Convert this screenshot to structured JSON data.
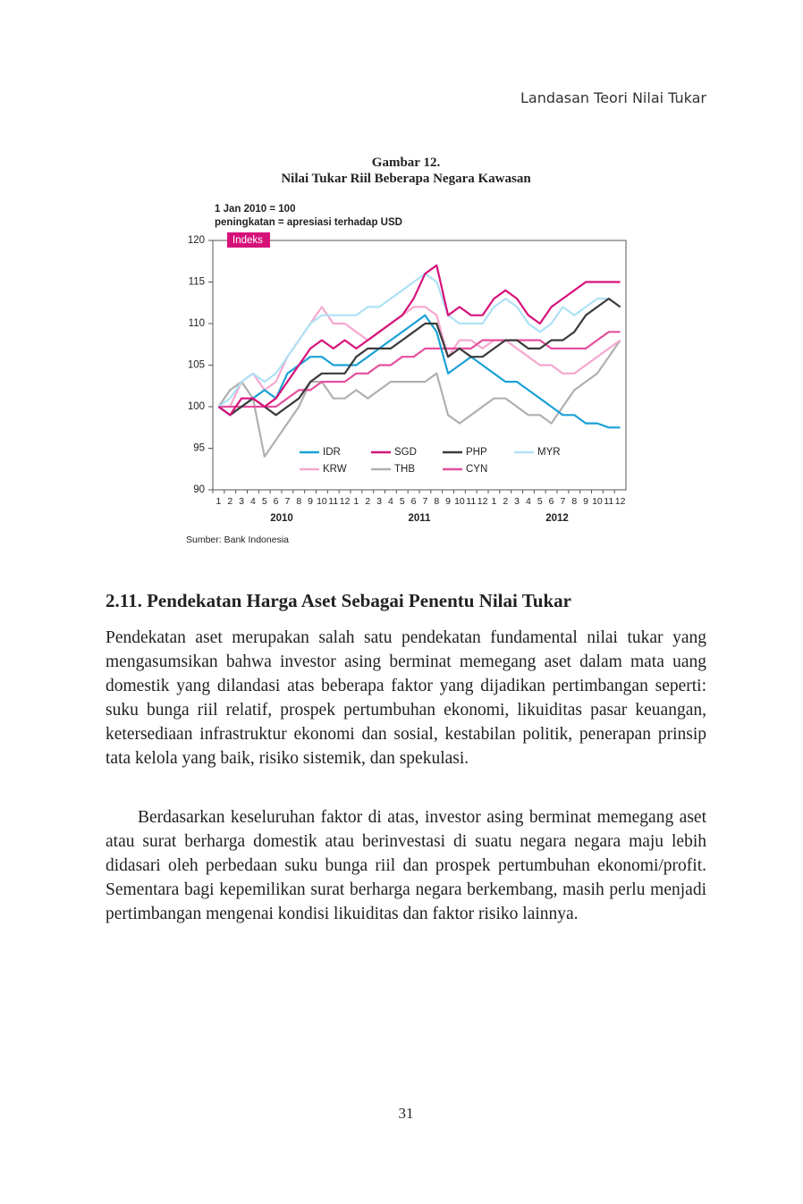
{
  "header": {
    "running_title": "Landasan Teori Nilai Tukar"
  },
  "figure": {
    "number": "Gambar 12.",
    "title": "Nilai Tukar Riil Beberapa Negara Kawasan",
    "source": "Sumber: Bank Indonesia"
  },
  "chart_data": {
    "type": "line",
    "notes": [
      "1 Jan 2010 = 100",
      "peningkatan = apresiasi terhadap USD"
    ],
    "y_label": "Indeks",
    "categories": [
      "1",
      "2",
      "3",
      "4",
      "5",
      "6",
      "7",
      "8",
      "9",
      "10",
      "11",
      "12",
      "1",
      "2",
      "3",
      "4",
      "5",
      "6",
      "7",
      "8",
      "9",
      "10",
      "11",
      "12",
      "1",
      "2",
      "3",
      "4",
      "5",
      "6",
      "7",
      "8",
      "9",
      "10",
      "11",
      "12"
    ],
    "x_groups": [
      "2010",
      "2011",
      "2012"
    ],
    "ylim": [
      90,
      120
    ],
    "yticks": [
      90,
      95,
      100,
      105,
      110,
      115,
      120
    ],
    "series": [
      {
        "name": "IDR",
        "color": "#1ba1d6",
        "values": [
          100,
          99,
          100,
          101,
          102,
          101,
          104,
          105,
          106,
          106,
          105,
          105,
          105,
          106,
          107,
          108,
          109,
          110,
          111,
          109,
          104,
          105,
          106,
          105,
          104,
          103,
          103,
          102,
          101,
          100,
          99,
          99,
          98,
          98,
          97.5,
          97.5
        ]
      },
      {
        "name": "SGD",
        "color": "#d6127a",
        "values": [
          100,
          99,
          101,
          101,
          100,
          101,
          103,
          105,
          107,
          108,
          107,
          108,
          107,
          108,
          109,
          110,
          111,
          113,
          116,
          117,
          111,
          112,
          111,
          111,
          113,
          114,
          113,
          111,
          110,
          112,
          113,
          114,
          115,
          115,
          115,
          115
        ]
      },
      {
        "name": "PHP",
        "color": "#3a3a3a",
        "values": [
          100,
          99,
          100,
          101,
          100,
          99,
          100,
          101,
          103,
          104,
          104,
          104,
          106,
          107,
          107,
          107,
          108,
          109,
          110,
          110,
          106,
          107,
          106,
          106,
          107,
          108,
          108,
          107,
          107,
          108,
          108,
          109,
          111,
          112,
          113,
          112
        ]
      },
      {
        "name": "MYR",
        "color": "#aee2f5",
        "values": [
          100,
          101,
          103,
          104,
          103,
          104,
          106,
          108,
          110,
          111,
          111,
          111,
          111,
          112,
          112,
          113,
          114,
          115,
          116,
          115,
          111,
          110,
          110,
          110,
          112,
          113,
          112,
          110,
          109,
          110,
          112,
          111,
          112,
          113,
          113,
          112
        ]
      },
      {
        "name": "KRW",
        "color": "#f5a8d0",
        "values": [
          100,
          100,
          103,
          104,
          102,
          103,
          106,
          108,
          110,
          112,
          110,
          110,
          109,
          108,
          109,
          110,
          111,
          112,
          112,
          111,
          106,
          108,
          108,
          107,
          108,
          108,
          107,
          106,
          105,
          105,
          104,
          104,
          105,
          106,
          107,
          108
        ]
      },
      {
        "name": "THB",
        "color": "#b0b0b0",
        "values": [
          100,
          102,
          103,
          101,
          94,
          96,
          98,
          100,
          103,
          103,
          101,
          101,
          102,
          101,
          102,
          103,
          103,
          103,
          103,
          104,
          99,
          98,
          99,
          100,
          101,
          101,
          100,
          99,
          99,
          98,
          100,
          102,
          103,
          104,
          106,
          108
        ]
      },
      {
        "name": "CYN",
        "color": "#e54f9e",
        "values": [
          100,
          100,
          100,
          100,
          100,
          100,
          101,
          102,
          102,
          103,
          103,
          103,
          104,
          104,
          105,
          105,
          106,
          106,
          107,
          107,
          107,
          107,
          107,
          108,
          108,
          108,
          108,
          108,
          108,
          107,
          107,
          107,
          107,
          108,
          109,
          109
        ]
      }
    ]
  },
  "section": {
    "heading": "2.11. Pendekatan Harga Aset Sebagai Penentu Nilai Tukar",
    "paragraphs": [
      "Pendekatan aset merupakan salah satu pendekatan fundamental nilai tukar yang mengasumsikan bahwa investor asing berminat memegang aset dalam mata uang domestik yang dilandasi atas beberapa faktor yang dijadikan pertimbangan seperti: suku bunga riil relatif, prospek pertumbuhan ekonomi, likuiditas pasar keuangan, ketersediaan infrastruktur ekonomi dan sosial, kestabilan politik, penerapan prinsip tata kelola yang baik, risiko sistemik, dan spekulasi.",
      "Berdasarkan keseluruhan faktor di atas, investor asing berminat memegang aset atau surat berharga domestik atau berinvestasi di suatu negara negara maju lebih didasari oleh perbedaan suku bunga riil dan prospek pertumbuhan ekonomi/profit. Sementara bagi kepemilikan surat berharga negara berkembang, masih perlu menjadi pertimbangan mengenai kondisi likuiditas dan faktor risiko lainnya."
    ]
  },
  "footer": {
    "page_number": "31"
  }
}
